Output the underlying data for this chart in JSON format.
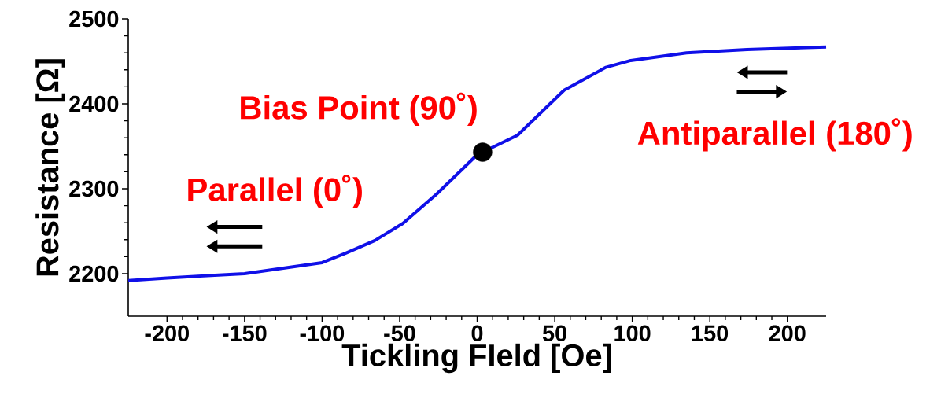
{
  "chart_data": {
    "type": "line",
    "xlabel": "Tickling FIeld [Oe]",
    "ylabel": "Resistance [Ω]",
    "xlim": [
      -225,
      225
    ],
    "ylim": [
      2150,
      2500
    ],
    "xticks": [
      -200,
      -150,
      -100,
      -50,
      0,
      50,
      100,
      150,
      200
    ],
    "yticks": [
      2200,
      2300,
      2400,
      2500
    ],
    "series": [
      {
        "color": "#1010e8",
        "x": [
          -225,
          -200,
          -150,
          -100,
          -85,
          -66,
          -48,
          -26,
          0,
          26,
          56,
          83,
          99,
          135,
          174,
          225
        ],
        "values": [
          2192,
          2195,
          2200,
          2213,
          2224,
          2239,
          2259,
          2294,
          2340,
          2363,
          2416,
          2443,
          2451,
          2460,
          2464,
          2467
        ]
      },
      {
        "type": "scatter",
        "color": "#000000",
        "x": [
          3.5
        ],
        "values": [
          2343
        ]
      }
    ],
    "annotations": [
      {
        "text": "Bias Point (90˚)",
        "x": 3.5,
        "y": 2343
      },
      "Parallel (0˚)",
      "Antiparallel (180˚)"
    ]
  }
}
